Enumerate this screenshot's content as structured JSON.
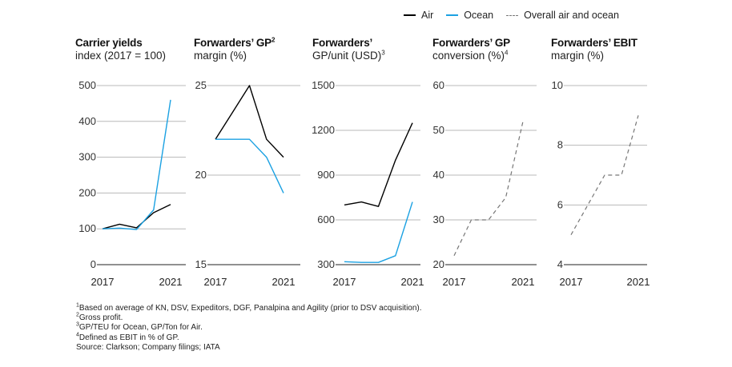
{
  "legend": [
    {
      "label": "Air",
      "color": "#000000",
      "style": "solid"
    },
    {
      "label": "Ocean",
      "color": "#1ba1e2",
      "style": "solid"
    },
    {
      "label": "Overall air and ocean",
      "color": "#777777",
      "style": "dashed"
    }
  ],
  "panels": [
    {
      "title": "Carrier yields",
      "subtitle": "index (2017 = 100)",
      "title_sup": "",
      "subtitle_sup": ""
    },
    {
      "title": "Forwarders’ GP",
      "subtitle": "margin (%)",
      "title_sup": "2",
      "subtitle_sup": ""
    },
    {
      "title": "Forwarders’",
      "subtitle": "GP/unit (USD)",
      "title_sup": "",
      "subtitle_sup": "3"
    },
    {
      "title": "Forwarders’ GP",
      "subtitle": "conversion (%)",
      "title_sup": "",
      "subtitle_sup": "4"
    },
    {
      "title": "Forwarders’ EBIT",
      "subtitle": "margin (%)",
      "title_sup": "",
      "subtitle_sup": ""
    }
  ],
  "chart_data": [
    {
      "type": "line",
      "title": "Carrier yields",
      "ylabel": "index (2017 = 100)",
      "x": [
        2017,
        2018,
        2019,
        2020,
        2021
      ],
      "x_tick_labels": [
        "2017",
        "2021"
      ],
      "ylim": [
        0,
        500
      ],
      "yticks": [
        0,
        100,
        200,
        300,
        400,
        500
      ],
      "series": [
        {
          "name": "Air",
          "color": "#000000",
          "dashed": false,
          "values": [
            100,
            113,
            103,
            145,
            168
          ]
        },
        {
          "name": "Ocean",
          "color": "#1ba1e2",
          "dashed": false,
          "values": [
            100,
            102,
            98,
            153,
            460
          ]
        }
      ]
    },
    {
      "type": "line",
      "title": "Forwarders’ GP",
      "ylabel": "margin (%)",
      "x": [
        2017,
        2018,
        2019,
        2020,
        2021
      ],
      "x_tick_labels": [
        "2017",
        "2021"
      ],
      "ylim": [
        15,
        25
      ],
      "yticks": [
        15,
        20,
        25
      ],
      "series": [
        {
          "name": "Air",
          "color": "#000000",
          "dashed": false,
          "values": [
            22.0,
            23.5,
            25.0,
            22.0,
            21.0
          ]
        },
        {
          "name": "Ocean",
          "color": "#1ba1e2",
          "dashed": false,
          "values": [
            22.0,
            22.0,
            22.0,
            21.0,
            19.0
          ]
        }
      ]
    },
    {
      "type": "line",
      "title": "Forwarders’",
      "ylabel": "GP/unit (USD)",
      "x": [
        2017,
        2018,
        2019,
        2020,
        2021
      ],
      "x_tick_labels": [
        "2017",
        "2021"
      ],
      "ylim": [
        300,
        1500
      ],
      "yticks": [
        300,
        600,
        900,
        1200,
        1500
      ],
      "series": [
        {
          "name": "Air",
          "color": "#000000",
          "dashed": false,
          "values": [
            700,
            720,
            690,
            1000,
            1250
          ]
        },
        {
          "name": "Ocean",
          "color": "#1ba1e2",
          "dashed": false,
          "values": [
            320,
            315,
            315,
            360,
            720
          ]
        }
      ]
    },
    {
      "type": "line",
      "title": "Forwarders’ GP",
      "ylabel": "conversion (%)",
      "x": [
        2017,
        2018,
        2019,
        2020,
        2021
      ],
      "x_tick_labels": [
        "2017",
        "2021"
      ],
      "ylim": [
        20,
        60
      ],
      "yticks": [
        20,
        30,
        40,
        50,
        60
      ],
      "series": [
        {
          "name": "Overall air and ocean",
          "color": "#777777",
          "dashed": true,
          "values": [
            22,
            30,
            30,
            35,
            52
          ]
        }
      ]
    },
    {
      "type": "line",
      "title": "Forwarders’ EBIT",
      "ylabel": "margin (%)",
      "x": [
        2017,
        2018,
        2019,
        2020,
        2021
      ],
      "x_tick_labels": [
        "2017",
        "2021"
      ],
      "ylim": [
        4,
        10
      ],
      "yticks": [
        4,
        6,
        8,
        10
      ],
      "series": [
        {
          "name": "Overall air and ocean",
          "color": "#777777",
          "dashed": true,
          "values": [
            5.0,
            6.0,
            7.0,
            7.0,
            9.0
          ]
        }
      ]
    }
  ],
  "footnotes": [
    {
      "sup": "1",
      "text": "Based on average of KN, DSV, Expeditors, DGF, Panalpina and Agility (prior to DSV acquisition)."
    },
    {
      "sup": "2",
      "text": "Gross profit."
    },
    {
      "sup": "3",
      "text": "GP/TEU for Ocean, GP/Ton for Air."
    },
    {
      "sup": "4",
      "text": "Defined as EBIT in % of GP."
    },
    {
      "sup": "",
      "text": " Source: Clarkson; Company filings; IATA"
    }
  ]
}
